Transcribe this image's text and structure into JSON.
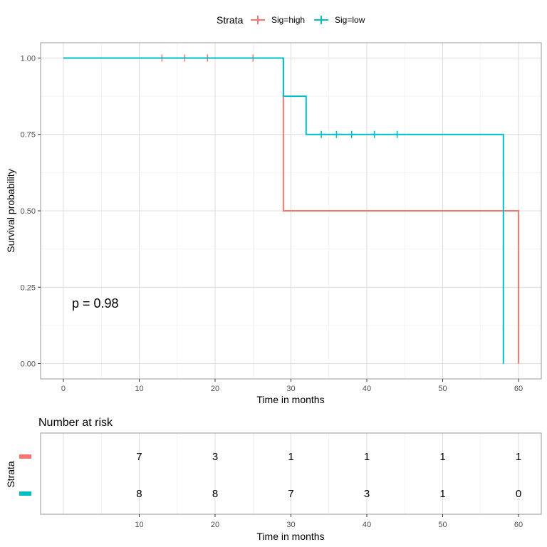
{
  "legend": {
    "title": "Strata",
    "items": [
      {
        "label": "Sig=high",
        "color": "#F8766D"
      },
      {
        "label": "Sig=low",
        "color": "#00BFC4"
      }
    ]
  },
  "main_plot": {
    "ylabel": "Survival probability",
    "xlabel": "Time in months",
    "pvalue_text": "p = 0.98"
  },
  "risk_table": {
    "title": "Number at risk",
    "ylabel": "Strata",
    "xlabel": "Time in months"
  },
  "chart_data": [
    {
      "type": "line",
      "subtype": "kaplan-meier step",
      "title": "",
      "xlabel": "Time in months",
      "ylabel": "Survival probability",
      "xlim": [
        -3,
        63
      ],
      "ylim": [
        -0.05,
        1.05
      ],
      "x_ticks": [
        0,
        10,
        20,
        30,
        40,
        50,
        60
      ],
      "y_ticks": [
        0.0,
        0.25,
        0.5,
        0.75,
        1.0
      ],
      "y_tick_labels": [
        "0.00",
        "0.25",
        "0.50",
        "0.75",
        "1.00"
      ],
      "grid": true,
      "legend_position": "top",
      "series": [
        {
          "name": "Sig=high",
          "color": "#F8766D",
          "steps": [
            [
              0,
              1.0
            ],
            [
              29,
              0.5
            ],
            [
              60,
              0.0
            ]
          ],
          "censor_times": [
            13,
            16,
            19,
            25
          ],
          "censor_values": [
            1.0,
            1.0,
            1.0,
            1.0
          ]
        },
        {
          "name": "Sig=low",
          "color": "#00BFC4",
          "steps": [
            [
              0,
              1.0
            ],
            [
              29,
              0.875
            ],
            [
              32,
              0.75
            ],
            [
              58,
              0.0
            ]
          ],
          "censor_times": [
            34,
            36,
            38,
            41,
            44
          ],
          "censor_values": [
            0.75,
            0.75,
            0.75,
            0.75,
            0.75
          ]
        }
      ],
      "annotations": [
        "p = 0.98"
      ]
    },
    {
      "type": "table",
      "title": "Number at risk",
      "xlabel": "Time in months",
      "ylabel": "Strata",
      "x_ticks": [
        10,
        20,
        30,
        40,
        50,
        60
      ],
      "rows": [
        {
          "strata": "Sig=high",
          "color": "#F8766D",
          "values": [
            7,
            3,
            1,
            1,
            1,
            1
          ]
        },
        {
          "strata": "Sig=low",
          "color": "#00BFC4",
          "values": [
            8,
            8,
            7,
            3,
            1,
            0
          ]
        }
      ]
    }
  ]
}
